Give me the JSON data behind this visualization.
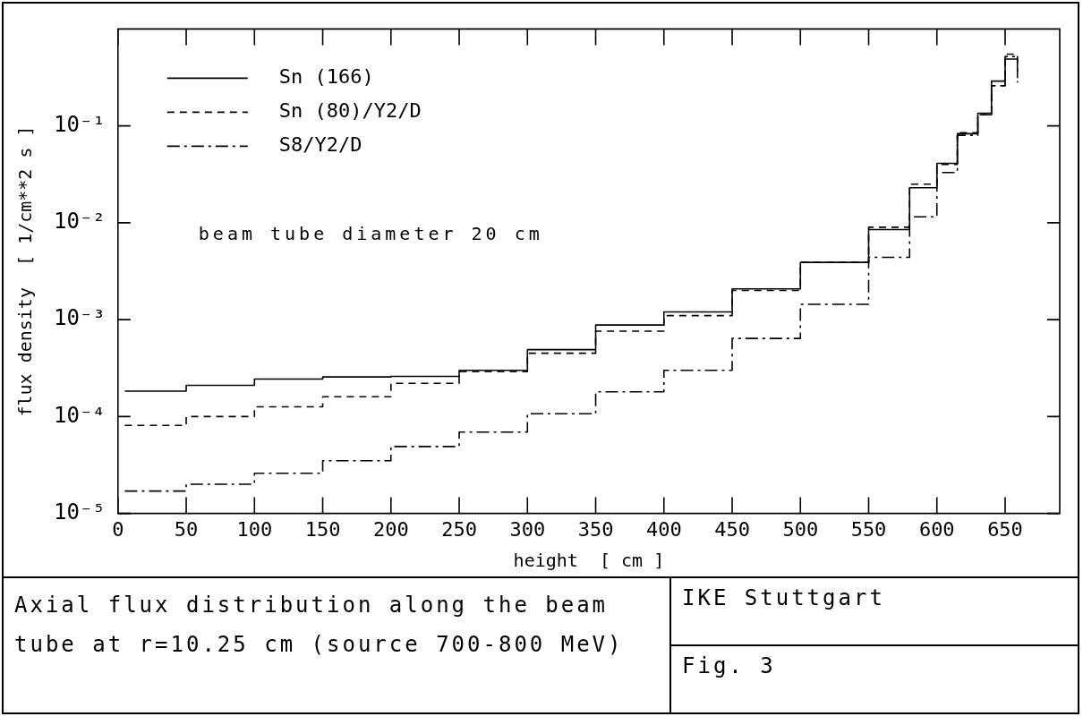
{
  "chart_data": {
    "type": "step",
    "title": "Axial flux distribution along the beam tube at r=10.25 cm (source 700-800 MeV)",
    "xlabel": "height  [ cm ]",
    "ylabel": "flux density  [ 1/cm**2 s ]",
    "annotations": [
      "beam tube diameter 20 cm",
      "IKE Stuttgart",
      "Fig. 3"
    ],
    "x": [
      5,
      50,
      100,
      150,
      200,
      250,
      300,
      350,
      400,
      450,
      500,
      550,
      580,
      600,
      615,
      630,
      640,
      650,
      659
    ],
    "series": [
      {
        "name": "Sn (166)",
        "color": "#000000",
        "line_style": "solid",
        "values": [
          0.000183,
          0.00021,
          0.000244,
          0.000256,
          0.00026,
          0.0003,
          0.00049,
          0.00088,
          0.0012,
          0.00208,
          0.0039,
          0.0085,
          0.023,
          0.041,
          0.083,
          0.135,
          0.29,
          0.49,
          0.49
        ]
      },
      {
        "name": "Sn (80)/Y2/D",
        "color": "#000000",
        "line_style": "dashed",
        "values": [
          8.1e-05,
          0.0001,
          0.000126,
          0.00016,
          0.00022,
          0.00029,
          0.00045,
          0.00076,
          0.0011,
          0.002,
          0.0039,
          0.009,
          0.025,
          0.04,
          0.085,
          0.13,
          0.26,
          0.55,
          0.28
        ]
      },
      {
        "name": "S8/Y2/D",
        "color": "#000000",
        "line_style": "dashdot",
        "values": [
          1.7e-05,
          2e-05,
          2.6e-05,
          3.5e-05,
          4.9e-05,
          6.9e-05,
          0.000107,
          0.00018,
          0.0003,
          0.00064,
          0.00144,
          0.0044,
          0.0115,
          0.033,
          0.08,
          0.13,
          0.26,
          0.52,
          0.28
        ]
      }
    ],
    "log": "y",
    "xlim": [
      0,
      690
    ],
    "ylim": [
      1e-05,
      1
    ],
    "xticks": [
      0,
      50,
      100,
      150,
      200,
      250,
      300,
      350,
      400,
      450,
      500,
      550,
      600,
      650
    ],
    "yticks": [
      {
        "value": 1e-05,
        "label": "10⁻⁵"
      },
      {
        "value": 0.0001,
        "label": "10⁻⁴"
      },
      {
        "value": 0.001,
        "label": "10⁻³"
      },
      {
        "value": 0.01,
        "label": "10⁻²"
      },
      {
        "value": 0.1,
        "label": "10⁻¹"
      }
    ],
    "grid": false,
    "legend": "top left"
  }
}
